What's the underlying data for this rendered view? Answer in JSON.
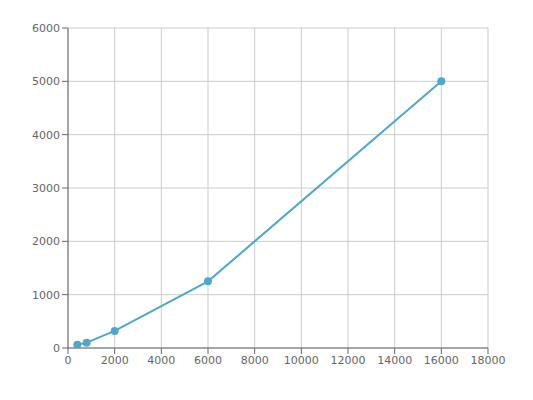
{
  "chart_data": {
    "type": "line",
    "x": [
      400,
      800,
      2000,
      6000,
      16000
    ],
    "values": [
      60,
      100,
      320,
      1250,
      5000
    ],
    "color": "#4fa8c8",
    "marker": "circle",
    "xlim": [
      0,
      18000
    ],
    "ylim": [
      0,
      6000
    ],
    "xticks": [
      0,
      2000,
      4000,
      6000,
      8000,
      10000,
      12000,
      14000,
      16000,
      18000
    ],
    "yticks": [
      0,
      1000,
      2000,
      3000,
      4000,
      5000,
      6000
    ],
    "grid": true
  }
}
